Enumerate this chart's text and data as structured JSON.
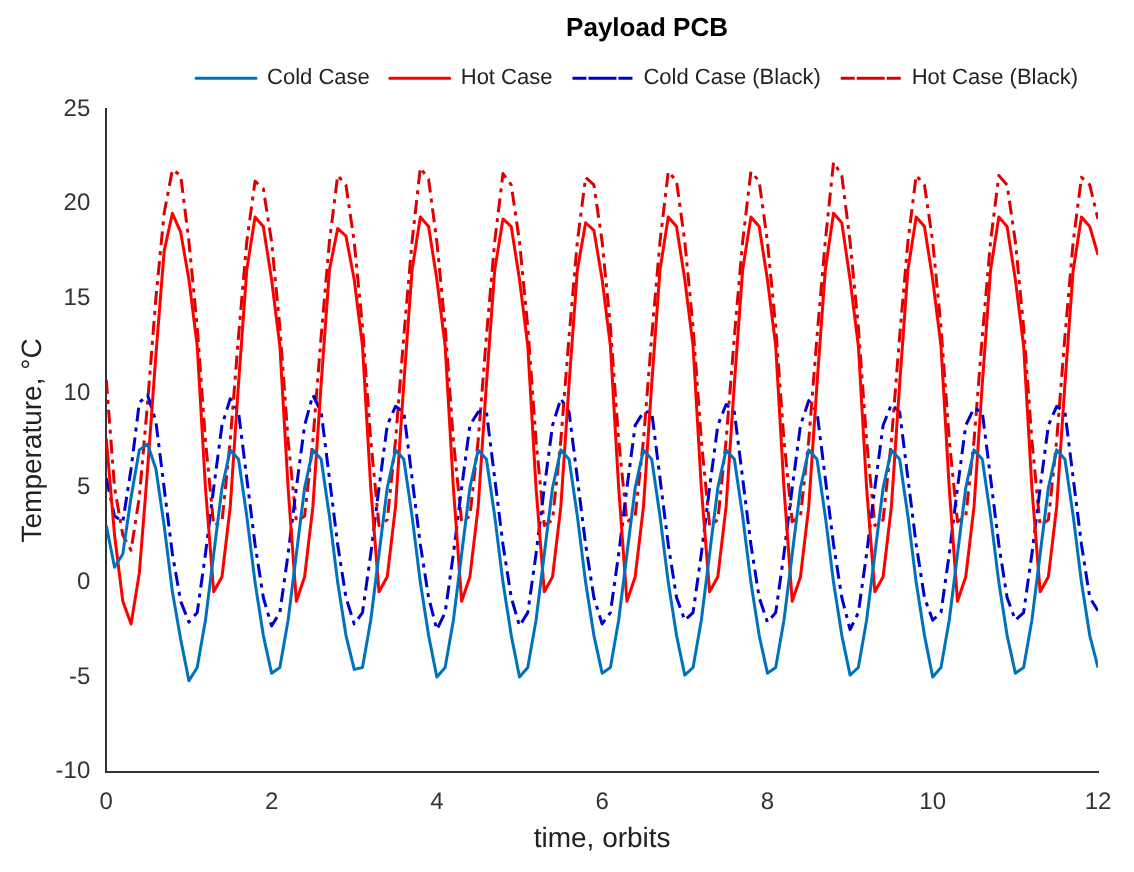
{
  "chart_data": {
    "type": "line",
    "xlabel": "time, orbits",
    "ylabel": "Temperature, °C",
    "legend_title": "Payload PCB",
    "legend": "top right",
    "marker": "none",
    "grid": false,
    "xlim": [
      0,
      12
    ],
    "xticks": [
      0,
      2,
      4,
      6,
      8,
      10,
      12
    ],
    "ylim": [
      -10,
      25
    ],
    "yticks": [
      -10,
      -5,
      0,
      5,
      10,
      15,
      20,
      25
    ],
    "x": [
      0,
      0.1,
      0.2,
      0.3,
      0.4,
      0.5,
      0.6,
      0.7,
      0.8,
      0.9,
      1,
      1.1,
      1.2,
      1.3,
      1.4,
      1.5,
      1.6,
      1.7,
      1.8,
      1.9,
      2,
      2.1,
      2.2,
      2.3,
      2.4,
      2.5,
      2.6,
      2.7,
      2.8,
      2.9,
      3,
      3.1,
      3.2,
      3.3,
      3.4,
      3.5,
      3.6,
      3.7,
      3.8,
      3.9,
      4,
      4.1,
      4.2,
      4.3,
      4.4,
      4.5,
      4.6,
      4.7,
      4.8,
      4.9,
      5,
      5.1,
      5.2,
      5.3,
      5.4,
      5.5,
      5.6,
      5.7,
      5.8,
      5.9,
      6,
      6.1,
      6.2,
      6.3,
      6.4,
      6.5,
      6.6,
      6.7,
      6.8,
      6.9,
      7,
      7.1,
      7.2,
      7.3,
      7.4,
      7.5,
      7.6,
      7.7,
      7.8,
      7.9,
      8,
      8.1,
      8.2,
      8.3,
      8.4,
      8.5,
      8.6,
      8.7,
      8.8,
      8.9,
      9,
      9.1,
      9.2,
      9.3,
      9.4,
      9.5,
      9.6,
      9.7,
      9.8,
      9.9,
      10,
      10.1,
      10.2,
      10.3,
      10.4,
      10.5,
      10.6,
      10.7,
      10.8,
      10.9,
      11,
      11.1,
      11.2,
      11.3,
      11.4,
      11.5,
      11.6,
      11.7,
      11.8,
      11.9,
      12
    ],
    "series": [
      {
        "name": "Cold Case",
        "color": "#0072bd",
        "line_style": "solid",
        "values": [
          3.0,
          0.8,
          1.5,
          4.5,
          7.0,
          7.3,
          6.0,
          3.0,
          -0.5,
          -3.0,
          -5.2,
          -4.5,
          -2.0,
          1.5,
          5.0,
          7.0,
          6.5,
          3.5,
          0.0,
          -2.8,
          -4.8,
          -4.5,
          -2.0,
          1.5,
          5.0,
          7.0,
          6.5,
          3.5,
          0.0,
          -2.8,
          -4.6,
          -4.5,
          -2.0,
          1.5,
          5.0,
          7.0,
          6.5,
          3.5,
          0.0,
          -2.8,
          -5.0,
          -4.5,
          -2.0,
          1.5,
          5.0,
          7.0,
          6.5,
          3.5,
          0.0,
          -2.8,
          -5.0,
          -4.5,
          -2.0,
          1.5,
          5.0,
          7.0,
          6.5,
          3.5,
          0.0,
          -2.8,
          -4.8,
          -4.5,
          -2.0,
          1.5,
          5.0,
          7.0,
          6.5,
          3.5,
          0.0,
          -2.8,
          -4.9,
          -4.5,
          -2.0,
          1.5,
          5.0,
          7.0,
          6.5,
          3.5,
          0.0,
          -2.8,
          -4.8,
          -4.5,
          -2.0,
          1.5,
          5.0,
          7.0,
          6.5,
          3.5,
          0.0,
          -2.8,
          -4.9,
          -4.5,
          -2.0,
          1.5,
          5.0,
          7.0,
          6.5,
          3.5,
          0.0,
          -2.8,
          -5.0,
          -4.5,
          -2.0,
          1.5,
          5.0,
          7.0,
          6.5,
          3.5,
          0.0,
          -2.8,
          -4.8,
          -4.5,
          -2.0,
          1.5,
          5.0,
          7.0,
          6.5,
          3.5,
          0.0,
          -2.8,
          -4.5
        ]
      },
      {
        "name": "Hot Case",
        "color": "#ff0000",
        "line_style": "solid",
        "values": [
          7.6,
          2.5,
          -1.0,
          -2.2,
          0.5,
          6.0,
          12.0,
          17.5,
          19.5,
          18.5,
          16,
          12.5,
          5,
          -0.5,
          0.3,
          4,
          10.5,
          16.5,
          19.3,
          18.8,
          16,
          12.5,
          5,
          -1.0,
          0.3,
          4,
          10.5,
          16.5,
          18.7,
          18.3,
          16,
          12.5,
          5,
          -0.5,
          0.3,
          4,
          10.5,
          16.5,
          19.3,
          18.8,
          16,
          12.5,
          5,
          -1.0,
          0.3,
          4,
          10.5,
          16.5,
          19.2,
          18.8,
          16,
          12.5,
          5,
          -0.5,
          0.3,
          4,
          10.5,
          16.5,
          19.0,
          18.6,
          16,
          12.5,
          5,
          -1.0,
          0.3,
          4,
          10.5,
          16.5,
          19.3,
          18.8,
          16,
          12.5,
          5,
          -0.5,
          0.3,
          4,
          10.5,
          16.5,
          19.3,
          18.8,
          16,
          12.5,
          5,
          -1.0,
          0.3,
          4,
          10.5,
          16.5,
          19.5,
          19.0,
          16,
          12.5,
          5,
          -0.5,
          0.3,
          4,
          10.5,
          16.5,
          19.3,
          18.8,
          16,
          12.5,
          5,
          -1.0,
          0.3,
          4,
          10.5,
          16.5,
          19.3,
          18.8,
          16,
          12.5,
          5,
          -0.5,
          0.3,
          4,
          10.5,
          16.5,
          19.3,
          18.8,
          17.3
        ]
      },
      {
        "name": "Cold Case (Black)",
        "color": "#0000cc",
        "line_style": "dashed",
        "values": [
          5.5,
          3.5,
          3.2,
          6.0,
          9.5,
          9.9,
          8.5,
          5.0,
          1.5,
          -1.0,
          -2.1,
          -1.6,
          1.5,
          5.0,
          8.3,
          9.7,
          9.0,
          5.5,
          2.0,
          -0.8,
          -2.3,
          -1.6,
          1.5,
          5.0,
          8.3,
          9.9,
          9.0,
          5.5,
          2.0,
          -0.8,
          -2.2,
          -1.6,
          1.5,
          5.0,
          8.3,
          9.3,
          9.0,
          5.5,
          2.0,
          -0.8,
          -2.5,
          -1.6,
          1.5,
          5.0,
          8.3,
          9.0,
          9.0,
          5.5,
          2.0,
          -0.8,
          -2.3,
          -1.6,
          1.5,
          5.0,
          8.3,
          9.7,
          9.0,
          5.5,
          2.0,
          -0.8,
          -2.2,
          -1.6,
          1.5,
          5.0,
          8.3,
          9.0,
          9.0,
          5.5,
          2.0,
          -0.8,
          -2.0,
          -1.6,
          1.5,
          5.0,
          8.3,
          9.4,
          9.0,
          5.5,
          2.0,
          -0.8,
          -2.1,
          -1.6,
          1.5,
          5.0,
          8.3,
          9.6,
          9.0,
          5.5,
          2.0,
          -0.8,
          -2.5,
          -1.6,
          1.5,
          5.0,
          8.3,
          9.4,
          9.0,
          5.5,
          2.0,
          -0.8,
          -2.0,
          -1.6,
          1.5,
          5.0,
          8.3,
          9.2,
          9.0,
          5.5,
          2.0,
          -0.8,
          -2.0,
          -1.6,
          1.5,
          5.0,
          8.3,
          9.3,
          9.0,
          5.5,
          2.0,
          -0.8,
          -1.5
        ]
      },
      {
        "name": "Hot Case (Black)",
        "color": "#dd0000",
        "line_style": "dashed",
        "values": [
          10.7,
          5.0,
          2.5,
          1.7,
          4.5,
          9.5,
          15.0,
          19.5,
          21.8,
          21.5,
          18,
          13.5,
          7.5,
          3.0,
          3.2,
          7.5,
          13,
          18,
          21.2,
          20.8,
          18,
          13.5,
          7.5,
          3.2,
          3.5,
          7.5,
          13,
          18,
          21.5,
          21.0,
          18,
          13.5,
          7.5,
          3.0,
          3.3,
          7.5,
          13,
          18,
          21.9,
          21.3,
          18,
          13.5,
          7.5,
          3.2,
          3.5,
          7.5,
          13,
          18,
          21.6,
          21.0,
          18,
          13.5,
          7.5,
          3.0,
          3.3,
          7.5,
          13,
          18,
          21.4,
          21.0,
          18,
          13.5,
          7.5,
          3.2,
          3.5,
          7.5,
          13,
          18,
          21.7,
          21.2,
          18,
          13.5,
          7.5,
          3.0,
          3.3,
          7.5,
          13,
          18,
          21.7,
          21.2,
          18,
          13.5,
          7.5,
          3.2,
          3.5,
          7.5,
          13,
          18,
          22.2,
          21.5,
          18,
          13.5,
          7.5,
          3.0,
          3.3,
          7.5,
          13,
          18,
          21.5,
          21.0,
          18,
          13.5,
          7.5,
          3.2,
          3.5,
          7.5,
          13,
          18,
          21.5,
          21.0,
          18,
          13.5,
          7.5,
          3.0,
          3.3,
          7.5,
          13,
          18,
          21.4,
          21.0,
          19.2
        ]
      }
    ]
  }
}
